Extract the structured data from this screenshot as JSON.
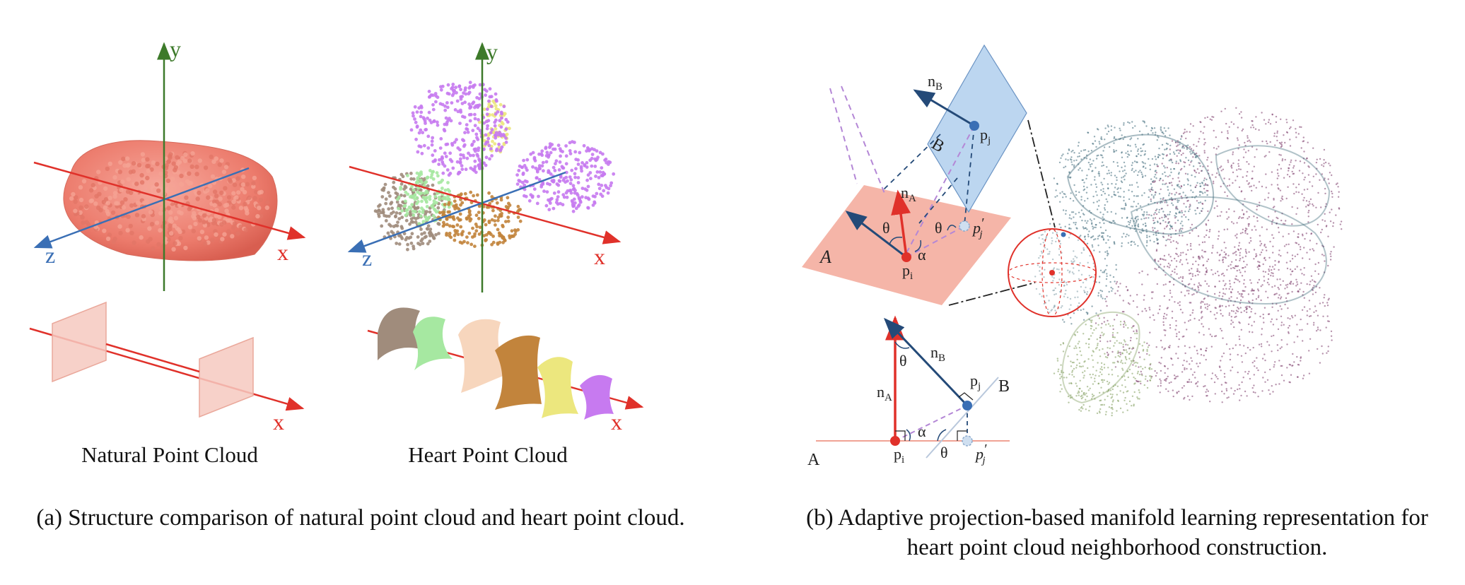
{
  "panel_a": {
    "axes": {
      "x": "x",
      "y": "y",
      "z": "z"
    },
    "natural_label": "Natural Point Cloud",
    "heart_label": "Heart Point Cloud",
    "colors": {
      "x_axis": "#e0312a",
      "y_axis": "#3d7a2a",
      "z_axis": "#3a6fb5",
      "natural_cloud": "#ef8a7c",
      "natural_plane": "#f6c9bf",
      "heart_clusters": [
        "#a08c7c",
        "#a6e8a1",
        "#f7d6bd",
        "#c2843c",
        "#ece77e",
        "#c77af0"
      ]
    },
    "caption": "(a) Structure comparison of natural point cloud and heart point cloud."
  },
  "panel_b": {
    "labels": {
      "plane_a": "A",
      "plane_b": "B",
      "normal_a": "n",
      "normal_a_sub": "A",
      "normal_b": "n",
      "normal_b_sub": "B",
      "point_i": "p",
      "point_i_sub": "i",
      "point_j": "p",
      "point_j_sub": "j",
      "point_jp": "p",
      "point_jp_sub": "j",
      "prime": "′",
      "theta": "θ",
      "alpha": "α"
    },
    "colors": {
      "plane_a": "#f4b1a3",
      "plane_b": "#bcd6f0",
      "normal_b": "#244a78",
      "normal_a": "#e0312a",
      "point_i": "#e0312a",
      "point_j": "#3a6fb5",
      "dashed_purple": "#b487d6",
      "heart_mesh": [
        "#3d6878",
        "#7c3a6a",
        "#7d9a5a"
      ]
    },
    "caption_line1": "(b) Adaptive projection-based manifold learning representation for",
    "caption_line2": "heart point cloud neighborhood construction."
  }
}
